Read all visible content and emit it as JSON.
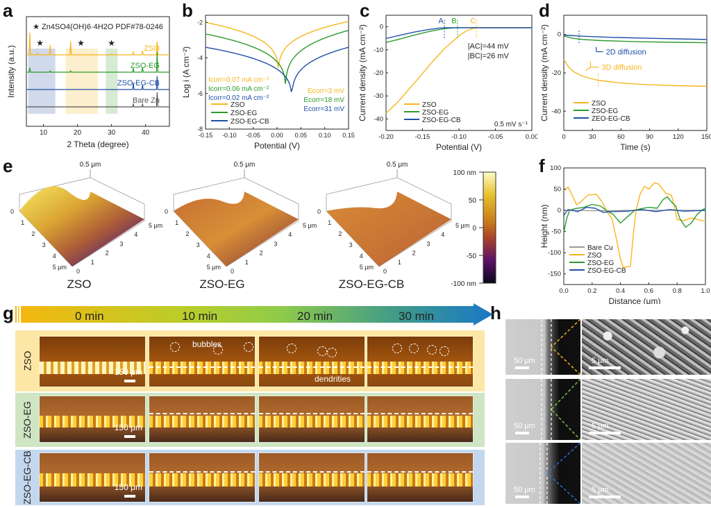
{
  "panels": {
    "a": "a",
    "b": "b",
    "c": "c",
    "d": "d",
    "e": "e",
    "f": "f",
    "g": "g",
    "h": "h"
  },
  "colors": {
    "zso": "#f7b51c",
    "zso_eg": "#2b9a2b",
    "zso_eg_cb": "#1f4fa8",
    "bare": "#555555"
  },
  "chart_data": [
    {
      "id": "a",
      "type": "line",
      "title": "",
      "annotation": "★ Zn4SO4(OH)6·4H2O  PDF#78-0246",
      "xlabel": "2 Theta (degree)",
      "ylabel": "Intensity (a.u.)",
      "xlim": [
        5,
        47
      ],
      "xticks": [
        10,
        20,
        30,
        40
      ],
      "star_positions": [
        9,
        21,
        30
      ],
      "highlight_regions": [
        {
          "from": 5.5,
          "to": 13.5,
          "color": "#c9d4e8"
        },
        {
          "from": 16.5,
          "to": 26,
          "color": "#fbecc4"
        },
        {
          "from": 28.3,
          "to": 31.8,
          "color": "#cfe6cc"
        }
      ],
      "series": [
        {
          "name": "ZSO",
          "offset": 3,
          "peaks": [
            [
              6.0,
              1.0
            ],
            [
              8.2,
              0.08
            ],
            [
              12.0,
              0.45
            ],
            [
              18.0,
              0.6
            ],
            [
              24.0,
              0.04
            ],
            [
              30.1,
              0.05
            ],
            [
              36.4,
              0.15
            ],
            [
              39.1,
              0.18
            ],
            [
              43.4,
              0.6
            ]
          ]
        },
        {
          "name": "ZSO-EG",
          "offset": 2,
          "peaks": [
            [
              6.0,
              0.2
            ],
            [
              12.0,
              0.06
            ],
            [
              18.0,
              0.06
            ],
            [
              36.4,
              0.18
            ],
            [
              39.1,
              0.22
            ],
            [
              43.4,
              0.9
            ]
          ]
        },
        {
          "name": "ZSO-EG-CB",
          "offset": 1,
          "peaks": [
            [
              36.4,
              0.3
            ],
            [
              39.1,
              0.2
            ],
            [
              43.4,
              0.6
            ]
          ]
        },
        {
          "name": "Bare Zn",
          "offset": 0,
          "peaks": [
            [
              36.4,
              0.12
            ],
            [
              39.1,
              0.12
            ],
            [
              43.4,
              0.65
            ]
          ]
        }
      ]
    },
    {
      "id": "b",
      "type": "line",
      "xlabel": "Potential (V)",
      "ylabel": "Log i (A cm⁻²)",
      "xlim": [
        -0.15,
        0.15
      ],
      "ylim": [
        -8,
        -1.6
      ],
      "xticks": [
        "-0.15",
        "-0.10",
        "-0.05",
        "0.00",
        "0.05",
        "0.10",
        "0.15"
      ],
      "yticks": [
        "-2",
        "-4",
        "-6",
        "-8"
      ],
      "series": [
        {
          "name": "ZSO",
          "ecorr": 0.003,
          "min": -5.35,
          "left": -2.0,
          "right": -1.95
        },
        {
          "name": "ZSO-EG",
          "ecorr": 0.018,
          "min": -6.3,
          "left": -2.65,
          "right": -2.45
        },
        {
          "name": "ZSO-EG-CB",
          "ecorr": 0.031,
          "min": -6.85,
          "left": -3.4,
          "right": -3.4
        }
      ],
      "annotations": {
        "icorr": [
          "Icorr=0.07 mA cm⁻²",
          "Icorr=0.06 mA cm⁻²",
          "Icorr=0.02 mA cm⁻²"
        ],
        "ecorr": [
          "Ecorr=3 mV",
          "Ecorr=18 mV",
          "Ecorr=31 mV"
        ]
      },
      "legend": "bottom-left"
    },
    {
      "id": "c",
      "type": "line",
      "xlabel": "Potential (V)",
      "ylabel": "Current density (mA cm⁻²)",
      "xlim": [
        -0.2,
        0.0
      ],
      "ylim": [
        -45,
        5
      ],
      "xticks": [
        "-0.20",
        "-0.15",
        "-0.10",
        "-0.05",
        "0.00"
      ],
      "yticks": [
        "0",
        "-10",
        "-20",
        "-30",
        "-40"
      ],
      "series": [
        {
          "name": "ZSO",
          "points": [
            [
              -0.2,
              -37.5
            ],
            [
              -0.185,
              -33
            ],
            [
              -0.178,
              -30.5
            ],
            [
              -0.16,
              -24
            ],
            [
              -0.14,
              -16.5
            ],
            [
              -0.12,
              -9.5
            ],
            [
              -0.1,
              -4
            ],
            [
              -0.09,
              -1.8
            ],
            [
              -0.08,
              -0.6
            ],
            [
              -0.075,
              -0.4
            ],
            [
              0.0,
              -0.4
            ]
          ]
        },
        {
          "name": "ZSO-EG",
          "points": [
            [
              -0.2,
              -6.8
            ],
            [
              -0.18,
              -5.2
            ],
            [
              -0.16,
              -3.5
            ],
            [
              -0.14,
              -2
            ],
            [
              -0.12,
              -0.8
            ],
            [
              -0.105,
              -0.4
            ],
            [
              0.0,
              -0.4
            ]
          ]
        },
        {
          "name": "ZSO-EG-CB",
          "points": [
            [
              -0.2,
              -5.1
            ],
            [
              -0.18,
              -3.6
            ],
            [
              -0.16,
              -2.2
            ],
            [
              -0.14,
              -1.1
            ],
            [
              -0.125,
              -0.5
            ],
            [
              -0.12,
              -0.4
            ],
            [
              0.0,
              -0.4
            ]
          ]
        }
      ],
      "markers": [
        {
          "label": "A",
          "x": -0.12,
          "series": "ZSO-EG-CB"
        },
        {
          "label": "B",
          "x": -0.102,
          "series": "ZSO-EG"
        },
        {
          "label": "C",
          "x": -0.076,
          "series": "ZSO"
        }
      ],
      "annotations": [
        "|AC|=44 mV",
        "|BC|=26 mV",
        "0.5 mV s⁻¹"
      ],
      "legend": "bottom-left"
    },
    {
      "id": "d",
      "type": "line",
      "xlabel": "Time (s)",
      "ylabel": "Current density (mA cm⁻²)",
      "xlim": [
        0,
        150
      ],
      "ylim": [
        -50,
        10
      ],
      "xticks": [
        "0",
        "30",
        "60",
        "90",
        "120",
        "150"
      ],
      "yticks": [
        "0",
        "-20",
        "-40"
      ],
      "series": [
        {
          "name": "ZSO",
          "points": [
            [
              0,
              -13
            ],
            [
              5,
              -17
            ],
            [
              10,
              -19.3
            ],
            [
              20,
              -21.8
            ],
            [
              35,
              -23.8
            ],
            [
              60,
              -25.3
            ],
            [
              90,
              -26.2
            ],
            [
              120,
              -26.7
            ],
            [
              150,
              -27
            ]
          ]
        },
        {
          "name": "ZSO-EG",
          "points": [
            [
              0,
              -0.8
            ],
            [
              10,
              -2
            ],
            [
              20,
              -2.6
            ],
            [
              40,
              -3.2
            ],
            [
              80,
              -3.8
            ],
            [
              120,
              -4.1
            ],
            [
              150,
              -4.3
            ]
          ]
        },
        {
          "name": "ZEO-EG-CB",
          "points": [
            [
              0,
              -0.3
            ],
            [
              20,
              -0.9
            ],
            [
              50,
              -1.5
            ],
            [
              90,
              -2
            ],
            [
              120,
              -2.3
            ],
            [
              150,
              -2.6
            ]
          ]
        }
      ],
      "markers": [
        {
          "x": 16,
          "series": "ZEO-EG-CB"
        },
        {
          "x": 36,
          "series": "ZSO"
        }
      ],
      "annotations": [
        "2D diffusion",
        "3D diffusion"
      ],
      "legend": "bottom-left"
    },
    {
      "id": "f",
      "type": "line",
      "xlabel": "Distance (μm)",
      "ylabel": "Height (nm)",
      "xlim": [
        0,
        1.0
      ],
      "ylim": [
        -175,
        100
      ],
      "xticks": [
        "0.0",
        "0.2",
        "0.4",
        "0.6",
        "0.8",
        "1.0"
      ],
      "yticks": [
        "100",
        "50",
        "0",
        "-50",
        "-100",
        "-150"
      ],
      "series": [
        {
          "name": "Bare Cu",
          "points": [
            [
              0,
              0
            ],
            [
              0.3,
              -1
            ],
            [
              0.5,
              0
            ],
            [
              1.0,
              0
            ]
          ]
        },
        {
          "name": "ZSO",
          "points": [
            [
              0,
              46
            ],
            [
              0.03,
              55
            ],
            [
              0.06,
              35
            ],
            [
              0.09,
              13
            ],
            [
              0.12,
              20
            ],
            [
              0.17,
              36
            ],
            [
              0.23,
              38
            ],
            [
              0.27,
              20
            ],
            [
              0.3,
              0
            ],
            [
              0.34,
              -20
            ],
            [
              0.37,
              -65
            ],
            [
              0.4,
              -115
            ],
            [
              0.42,
              -135
            ],
            [
              0.47,
              -132
            ],
            [
              0.49,
              -60
            ],
            [
              0.51,
              0
            ],
            [
              0.54,
              40
            ],
            [
              0.57,
              57
            ],
            [
              0.6,
              50
            ],
            [
              0.64,
              65
            ],
            [
              0.67,
              62
            ],
            [
              0.72,
              40
            ],
            [
              0.76,
              36
            ],
            [
              0.78,
              10
            ],
            [
              0.8,
              -22
            ],
            [
              0.85,
              -24
            ],
            [
              0.9,
              -18
            ],
            [
              0.95,
              -22
            ],
            [
              1.0,
              -26
            ]
          ]
        },
        {
          "name": "ZSO-EG",
          "points": [
            [
              0,
              -52
            ],
            [
              0.02,
              -20
            ],
            [
              0.04,
              0
            ],
            [
              0.08,
              4
            ],
            [
              0.14,
              7
            ],
            [
              0.2,
              14
            ],
            [
              0.26,
              10
            ],
            [
              0.3,
              0
            ],
            [
              0.35,
              -10
            ],
            [
              0.4,
              -30
            ],
            [
              0.45,
              -15
            ],
            [
              0.5,
              0
            ],
            [
              0.55,
              4
            ],
            [
              0.6,
              7
            ],
            [
              0.66,
              5
            ],
            [
              0.7,
              25
            ],
            [
              0.73,
              32
            ],
            [
              0.76,
              20
            ],
            [
              0.79,
              10
            ],
            [
              0.82,
              -20
            ],
            [
              0.86,
              -40
            ],
            [
              0.9,
              -30
            ],
            [
              0.94,
              -10
            ],
            [
              0.98,
              2
            ],
            [
              1.0,
              4
            ]
          ]
        },
        {
          "name": "ZSO-EG-CB",
          "points": [
            [
              0,
              -12
            ],
            [
              0.03,
              2
            ],
            [
              0.1,
              -3
            ],
            [
              0.16,
              7
            ],
            [
              0.22,
              5
            ],
            [
              0.28,
              -5
            ],
            [
              0.34,
              -3
            ],
            [
              0.45,
              -2
            ],
            [
              0.55,
              2
            ],
            [
              0.65,
              -3
            ],
            [
              0.75,
              2
            ],
            [
              0.85,
              -2
            ],
            [
              1.0,
              0
            ]
          ]
        }
      ],
      "legend": "bottom-left"
    }
  ],
  "afm": {
    "samples": [
      {
        "label": "ZSO",
        "z_top": "0.5 μm",
        "axis_left": [
          "0",
          "1",
          "2",
          "3",
          "4",
          "5 μm"
        ],
        "axis_right": [
          "0",
          "1",
          "2",
          "3",
          "4",
          "5 μm"
        ]
      },
      {
        "label": "ZSO-EG",
        "z_top": "0.5 μm",
        "axis_left": [
          "0",
          "1",
          "2",
          "3",
          "4",
          "5 μm"
        ],
        "axis_right": [
          "0",
          "1",
          "2",
          "3",
          "4",
          "5 μm"
        ]
      },
      {
        "label": "ZSO-EG-CB",
        "z_top": "0.5 μm",
        "axis_left": [
          "0",
          "1",
          "2",
          "3",
          "4",
          "5 μm"
        ],
        "axis_right": [
          "0",
          "1",
          "2",
          "3",
          "4",
          "5 μm"
        ]
      }
    ],
    "colorbar": {
      "ticks": [
        "100 nm",
        "50",
        "0",
        "-50",
        "-100 nm"
      ]
    }
  },
  "timeline": {
    "labels": [
      "0 min",
      "10 min",
      "20 min",
      "30 min"
    ]
  },
  "micro_rows": [
    {
      "label": "ZSO",
      "scale": "150 μm",
      "notes": {
        "bubbles": "bubbles",
        "dendrities": "dendrities"
      }
    },
    {
      "label": "ZSO-EG",
      "scale": "150 μm"
    },
    {
      "label": "ZSO-EG-CB",
      "scale": "150 μm"
    }
  ],
  "sem": {
    "rows": [
      {
        "scale_left": "50 μm",
        "scale_right": "5 μm",
        "accent": "#f7b51c"
      },
      {
        "scale_left": "50 μm",
        "scale_right": "5 μm",
        "accent": "#7cc242"
      },
      {
        "scale_left": "50 μm",
        "scale_right": "5 μm",
        "accent": "#2f6fd6"
      }
    ]
  }
}
